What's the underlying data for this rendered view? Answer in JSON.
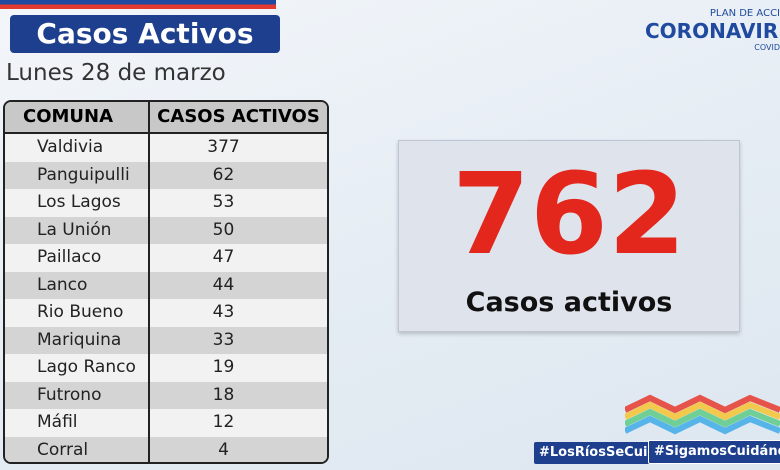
{
  "header": {
    "title": "Casos Activos",
    "date": "Lunes 28 de marzo"
  },
  "logo": {
    "line1": "PLAN DE ACCI",
    "line2": "CORONAVIRU",
    "line3": "COVID"
  },
  "table": {
    "columns": [
      "COMUNA",
      "CASOS ACTIVOS"
    ],
    "rows": [
      [
        "Valdivia",
        377
      ],
      [
        "Panguipulli",
        62
      ],
      [
        "Los Lagos",
        53
      ],
      [
        "La Unión",
        50
      ],
      [
        "Paillaco",
        47
      ],
      [
        "Lanco",
        44
      ],
      [
        "Rio Bueno",
        43
      ],
      [
        "Mariquina",
        33
      ],
      [
        "Lago Ranco",
        19
      ],
      [
        "Futrono",
        18
      ],
      [
        "Máfil",
        12
      ],
      [
        "Corral",
        4
      ]
    ]
  },
  "total": {
    "value": 762,
    "label": "Casos activos"
  },
  "hashtags": [
    "#LosRíosSeCuida",
    "#SigamosCuidándon"
  ]
}
